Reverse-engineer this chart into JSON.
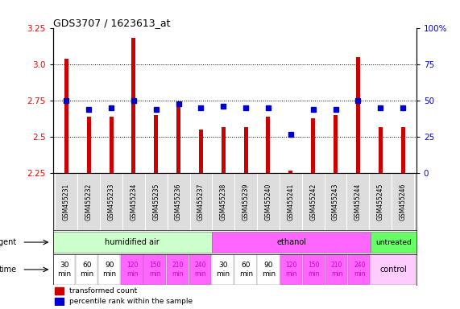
{
  "title": "GDS3707 / 1623613_at",
  "samples": [
    "GSM455231",
    "GSM455232",
    "GSM455233",
    "GSM455234",
    "GSM455235",
    "GSM455236",
    "GSM455237",
    "GSM455238",
    "GSM455239",
    "GSM455240",
    "GSM455241",
    "GSM455242",
    "GSM455243",
    "GSM455244",
    "GSM455245",
    "GSM455246"
  ],
  "bar_values": [
    3.04,
    2.64,
    2.64,
    3.18,
    2.65,
    2.74,
    2.55,
    2.57,
    2.57,
    2.64,
    2.27,
    2.63,
    2.65,
    3.05,
    2.57,
    2.57
  ],
  "dot_values": [
    50,
    44,
    45,
    50,
    44,
    48,
    45,
    46,
    45,
    45,
    27,
    44,
    44,
    50,
    45,
    45
  ],
  "ylim": [
    2.25,
    3.25
  ],
  "yticks": [
    2.25,
    2.5,
    2.75,
    3.0,
    3.25
  ],
  "right_yticks": [
    0,
    25,
    50,
    75,
    100
  ],
  "bar_color": "#cc0000",
  "dot_color": "#0000cc",
  "bg_color": "#ffffff",
  "agent_humidified_color": "#ccffcc",
  "agent_ethanol_color": "#ff66ff",
  "agent_untreated_color": "#66ff66",
  "time_pink_color": "#ff66ff",
  "time_white_color": "#ffffff",
  "time_control_color": "#ffccff",
  "legend_items": [
    {
      "color": "#cc0000",
      "label": "transformed count"
    },
    {
      "color": "#0000cc",
      "label": "percentile rank within the sample"
    }
  ],
  "xlabel_left": "agent",
  "xlabel_time": "time",
  "control_label": "control",
  "dotted_line_color": "#000000",
  "time_labels": [
    "30\nmin",
    "60\nmin",
    "90\nmin",
    "120\nmin",
    "150\nmin",
    "210\nmin",
    "240\nmin",
    "30\nmin",
    "60\nmin",
    "90\nmin",
    "120\nmin",
    "150\nmin",
    "210\nmin",
    "240\nmin"
  ],
  "time_white_idx": [
    0,
    1,
    2,
    7,
    8,
    9
  ],
  "time_pink_idx": [
    3,
    4,
    5,
    6,
    10,
    11,
    12,
    13
  ]
}
